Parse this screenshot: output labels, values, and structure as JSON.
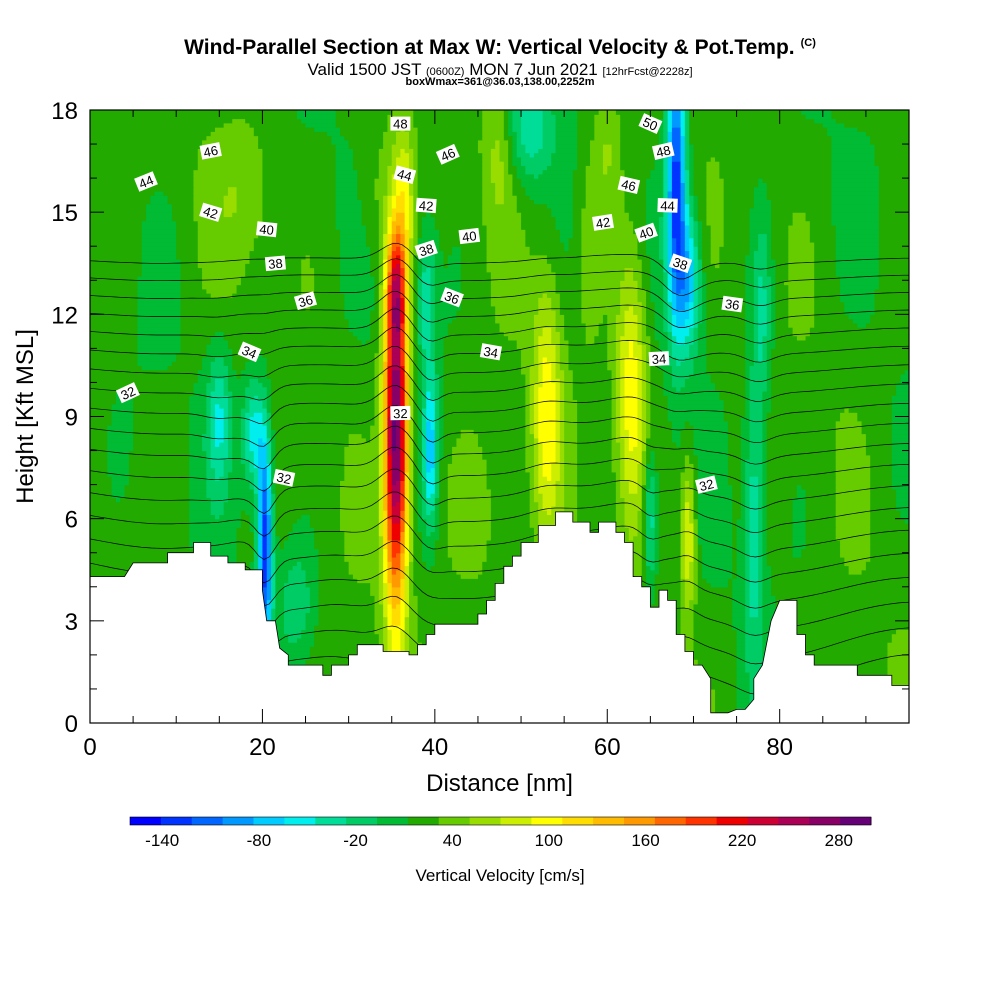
{
  "header": {
    "title": "Wind-Parallel Section at Max W: Vertical Velocity & Pot.Temp.",
    "copyright": "(C)",
    "valid_prefix": "Valid 1500 JST",
    "valid_utc": "(0600Z)",
    "valid_date": "MON 7 Jun 2021",
    "forecast": "[12hrFcst@2228z]",
    "box_info": "boxWmax=361@36.03,138.00,2252m"
  },
  "chart_data": {
    "type": "heatmap",
    "xlabel": "Distance [nm]",
    "ylabel": "Height [Kft MSL]",
    "xlim": [
      0,
      95
    ],
    "ylim": [
      0,
      18
    ],
    "xticks": [
      "0",
      "20",
      "40",
      "60",
      "80"
    ],
    "yticks": [
      "0",
      "3",
      "6",
      "9",
      "12",
      "15",
      "18"
    ],
    "colorbar": {
      "label": "Vertical Velocity [cm/s]",
      "ticks": [
        "-140",
        "-80",
        "-20",
        "40",
        "100",
        "160",
        "220",
        "280"
      ],
      "range": [
        -160,
        300
      ],
      "colors": [
        "#0000ff",
        "#0033ff",
        "#0066ff",
        "#0099ff",
        "#00ccff",
        "#00eeee",
        "#00dd99",
        "#00cc66",
        "#00bb33",
        "#22aa00",
        "#66cc00",
        "#99dd00",
        "#ccee00",
        "#ffff00",
        "#ffdd00",
        "#ffbb00",
        "#ff9900",
        "#ff6600",
        "#ff3300",
        "#ee0000",
        "#cc0033",
        "#aa0055",
        "#880066",
        "#660077"
      ]
    },
    "terrain": [
      [
        0,
        4.3
      ],
      [
        4,
        4.3
      ],
      [
        5,
        4.7
      ],
      [
        9,
        4.7
      ],
      [
        9,
        5.0
      ],
      [
        12,
        5.0
      ],
      [
        12,
        5.3
      ],
      [
        14,
        5.3
      ],
      [
        14,
        4.9
      ],
      [
        16,
        4.9
      ],
      [
        16,
        4.7
      ],
      [
        18,
        4.7
      ],
      [
        18,
        4.5
      ],
      [
        20,
        4.5
      ],
      [
        20,
        3.9
      ],
      [
        20.5,
        3.0
      ],
      [
        21.5,
        3.0
      ],
      [
        22,
        2.2
      ],
      [
        23,
        2.0
      ],
      [
        23,
        1.7
      ],
      [
        27,
        1.7
      ],
      [
        27,
        1.4
      ],
      [
        28,
        1.4
      ],
      [
        28,
        1.7
      ],
      [
        30,
        1.7
      ],
      [
        30,
        2.0
      ],
      [
        31,
        2.0
      ],
      [
        31,
        2.3
      ],
      [
        34,
        2.3
      ],
      [
        34,
        2.1
      ],
      [
        36,
        2.1
      ],
      [
        37,
        2.1
      ],
      [
        37,
        2.0
      ],
      [
        38,
        2.0
      ],
      [
        38,
        2.3
      ],
      [
        39,
        2.3
      ],
      [
        39,
        2.6
      ],
      [
        40,
        2.6
      ],
      [
        40,
        2.9
      ],
      [
        45,
        2.9
      ],
      [
        45,
        3.2
      ],
      [
        46,
        3.2
      ],
      [
        46,
        3.6
      ],
      [
        47,
        3.6
      ],
      [
        47,
        4.1
      ],
      [
        48,
        4.1
      ],
      [
        48,
        4.6
      ],
      [
        49,
        4.6
      ],
      [
        49,
        4.9
      ],
      [
        50,
        4.9
      ],
      [
        50,
        5.3
      ],
      [
        52,
        5.3
      ],
      [
        52,
        5.8
      ],
      [
        54,
        5.8
      ],
      [
        54,
        6.2
      ],
      [
        56,
        6.2
      ],
      [
        56,
        5.9
      ],
      [
        58,
        5.9
      ],
      [
        58,
        5.6
      ],
      [
        59,
        5.6
      ],
      [
        59,
        5.9
      ],
      [
        61,
        5.9
      ],
      [
        61,
        5.6
      ],
      [
        62,
        5.6
      ],
      [
        62,
        5.3
      ],
      [
        63,
        5.3
      ],
      [
        63,
        4.3
      ],
      [
        64,
        4.3
      ],
      [
        64,
        4.0
      ],
      [
        65,
        4.0
      ],
      [
        65,
        3.4
      ],
      [
        66,
        3.4
      ],
      [
        66,
        3.9
      ],
      [
        67,
        3.9
      ],
      [
        67,
        3.6
      ],
      [
        68,
        3.6
      ],
      [
        68,
        2.6
      ],
      [
        69,
        2.6
      ],
      [
        69,
        2.1
      ],
      [
        70,
        2.1
      ],
      [
        70,
        1.7
      ],
      [
        71,
        1.7
      ],
      [
        72,
        1.3
      ],
      [
        72,
        0.3
      ],
      [
        74,
        0.3
      ],
      [
        75,
        0.4
      ],
      [
        76,
        0.4
      ],
      [
        77,
        0.7
      ],
      [
        77,
        1.3
      ],
      [
        78,
        1.7
      ],
      [
        79,
        3.0
      ],
      [
        80,
        3.6
      ],
      [
        82,
        3.6
      ],
      [
        82,
        2.6
      ],
      [
        83,
        2.6
      ],
      [
        83,
        2.0
      ],
      [
        84,
        2.0
      ],
      [
        84,
        1.7
      ],
      [
        89,
        1.7
      ],
      [
        89,
        1.4
      ],
      [
        93,
        1.4
      ],
      [
        93,
        1.1
      ],
      [
        95,
        1.1
      ]
    ],
    "background_value": 20,
    "updraft_cores": [
      {
        "x": 35.5,
        "y": 8.5,
        "sx": 1.0,
        "sy": 3.6,
        "value": 300
      },
      {
        "x": 35.5,
        "y": 12.8,
        "sx": 0.8,
        "sy": 1.2,
        "value": 120
      },
      {
        "x": 53.0,
        "y": 9.2,
        "sx": 1.2,
        "sy": 2.6,
        "value": 95
      },
      {
        "x": 62.8,
        "y": 9.8,
        "sx": 1.3,
        "sy": 2.8,
        "value": 105
      },
      {
        "x": 69.4,
        "y": 5.5,
        "sx": 0.6,
        "sy": 1.6,
        "value": 95
      },
      {
        "x": 36.5,
        "y": 15.5,
        "sx": 0.8,
        "sy": 1.5,
        "value": 70
      },
      {
        "x": 18.0,
        "y": 15.5,
        "sx": 2.5,
        "sy": 1.5,
        "value": 45
      },
      {
        "x": 47.5,
        "y": 17.0,
        "sx": 1.2,
        "sy": 1.5,
        "value": 55
      },
      {
        "x": 60.0,
        "y": 17.0,
        "sx": 1.2,
        "sy": 1.5,
        "value": 55
      },
      {
        "x": 33.0,
        "y": 15.5,
        "sx": 1.5,
        "sy": 1.5,
        "value": 40
      },
      {
        "x": 45.0,
        "y": 6.0,
        "sx": 3.0,
        "sy": 2.0,
        "value": 45
      },
      {
        "x": 58.0,
        "y": 14.0,
        "sx": 1.0,
        "sy": 2.0,
        "value": 45
      }
    ],
    "downdraft_cores": [
      {
        "x": 20.3,
        "y": 5.2,
        "sx": 0.6,
        "sy": 2.2,
        "value": -140
      },
      {
        "x": 19.0,
        "y": 8.5,
        "sx": 1.0,
        "sy": 1.2,
        "value": -60
      },
      {
        "x": 68.0,
        "y": 16.0,
        "sx": 0.8,
        "sy": 3.0,
        "value": -130
      },
      {
        "x": 69.5,
        "y": 13.0,
        "sx": 1.0,
        "sy": 1.5,
        "value": -70
      },
      {
        "x": 39.5,
        "y": 8.0,
        "sx": 0.6,
        "sy": 1.6,
        "value": -70
      },
      {
        "x": 39.0,
        "y": 12.5,
        "sx": 0.8,
        "sy": 1.5,
        "value": -40
      },
      {
        "x": 51.0,
        "y": 17.5,
        "sx": 2.0,
        "sy": 1.2,
        "value": -40
      },
      {
        "x": 65.0,
        "y": 6.0,
        "sx": 0.6,
        "sy": 1.5,
        "value": -50
      },
      {
        "x": 77.0,
        "y": 6.0,
        "sx": 0.8,
        "sy": 3.0,
        "value": -40
      },
      {
        "x": 15.0,
        "y": 9.0,
        "sx": 1.0,
        "sy": 1.5,
        "value": -40
      },
      {
        "x": 78.0,
        "y": 12.0,
        "sx": 0.8,
        "sy": 2.0,
        "value": -30
      },
      {
        "x": 24.0,
        "y": 3.5,
        "sx": 1.5,
        "sy": 1.2,
        "value": -20
      }
    ],
    "theta_levels": [
      31,
      32,
      33,
      34,
      35,
      36,
      37,
      38,
      39,
      40,
      41,
      42,
      43,
      44,
      45,
      46,
      47,
      48,
      49,
      50
    ],
    "theta_labels": [
      {
        "x": 4.4,
        "y": 9.7,
        "text": "32"
      },
      {
        "x": 22.5,
        "y": 7.2,
        "text": "32"
      },
      {
        "x": 36.0,
        "y": 9.1,
        "text": "32"
      },
      {
        "x": 71.5,
        "y": 7.0,
        "text": "32"
      },
      {
        "x": 18.5,
        "y": 10.9,
        "text": "34"
      },
      {
        "x": 46.5,
        "y": 10.9,
        "text": "34"
      },
      {
        "x": 66.0,
        "y": 10.7,
        "text": "34"
      },
      {
        "x": 25.0,
        "y": 12.4,
        "text": "36"
      },
      {
        "x": 42.0,
        "y": 12.5,
        "text": "36"
      },
      {
        "x": 74.5,
        "y": 12.3,
        "text": "36"
      },
      {
        "x": 21.5,
        "y": 13.5,
        "text": "38"
      },
      {
        "x": 39.0,
        "y": 13.9,
        "text": "38"
      },
      {
        "x": 68.5,
        "y": 13.5,
        "text": "38"
      },
      {
        "x": 20.5,
        "y": 14.5,
        "text": "40"
      },
      {
        "x": 44.0,
        "y": 14.3,
        "text": "40"
      },
      {
        "x": 64.5,
        "y": 14.4,
        "text": "40"
      },
      {
        "x": 14.0,
        "y": 15.0,
        "text": "42"
      },
      {
        "x": 39.0,
        "y": 15.2,
        "text": "42"
      },
      {
        "x": 59.5,
        "y": 14.7,
        "text": "42"
      },
      {
        "x": 6.5,
        "y": 15.9,
        "text": "44"
      },
      {
        "x": 36.5,
        "y": 16.1,
        "text": "44"
      },
      {
        "x": 67.0,
        "y": 15.2,
        "text": "44"
      },
      {
        "x": 14.0,
        "y": 16.8,
        "text": "46"
      },
      {
        "x": 41.5,
        "y": 16.7,
        "text": "46"
      },
      {
        "x": 62.5,
        "y": 15.8,
        "text": "46"
      },
      {
        "x": 36.0,
        "y": 17.6,
        "text": "48"
      },
      {
        "x": 66.5,
        "y": 16.8,
        "text": "48"
      },
      {
        "x": 65.0,
        "y": 17.6,
        "text": "50"
      }
    ]
  }
}
